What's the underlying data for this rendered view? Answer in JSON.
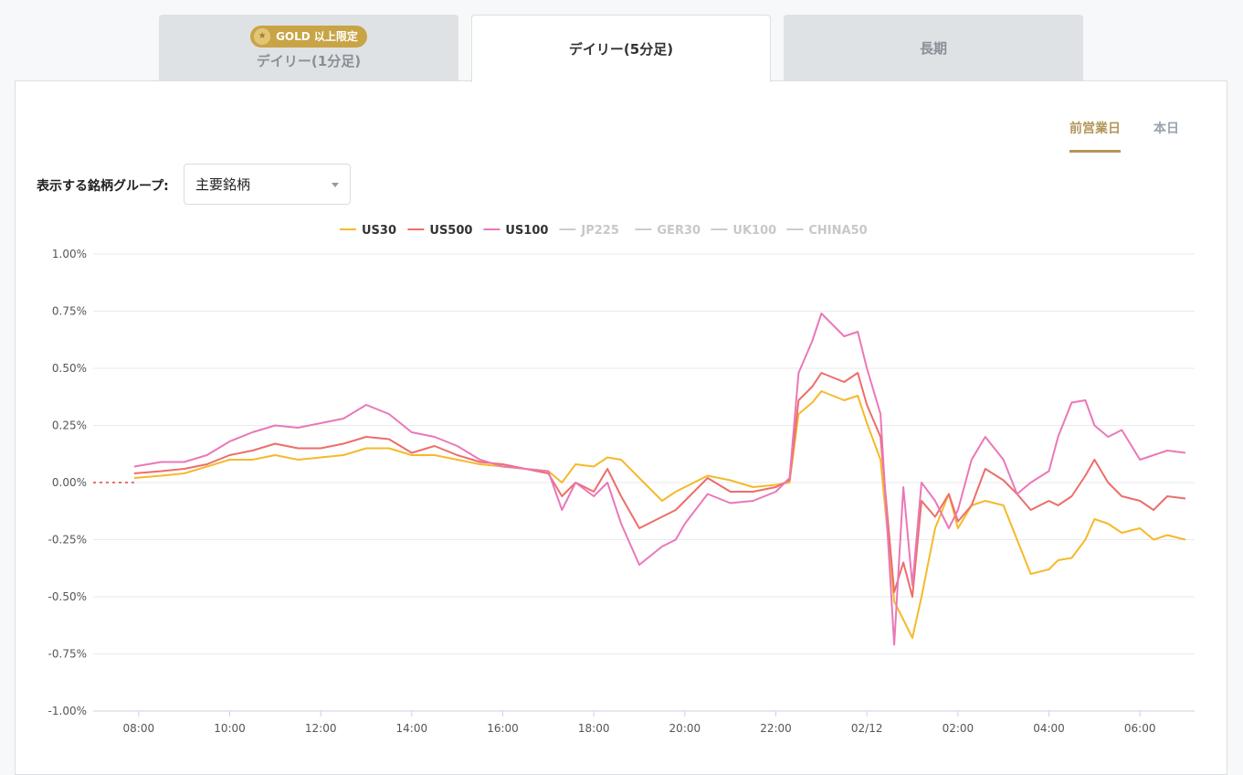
{
  "tabs": [
    {
      "label": "デイリー(1分足)",
      "badge": "GOLD 以上限定",
      "state": "inactive"
    },
    {
      "label": "デイリー(5分足)",
      "state": "active"
    },
    {
      "label": "長期",
      "state": "inactive"
    }
  ],
  "period_tabs": [
    {
      "label": "前営業日",
      "active": true
    },
    {
      "label": "本日",
      "active": false
    }
  ],
  "group_selector": {
    "label": "表示する銘柄グループ:",
    "value": "主要銘柄"
  },
  "colors": {
    "accent": "#b3975a",
    "gold_badge": "#c9a446",
    "US30": "#f6b92b",
    "US500": "#ec6e6a",
    "US100": "#ea78b8",
    "disabled": "#cccccc"
  },
  "chart_data": {
    "type": "line",
    "y_unit": "%",
    "ylim": [
      -1.0,
      1.0
    ],
    "y_ticks": [
      "1.00%",
      "0.75%",
      "0.50%",
      "0.25%",
      "0.00%",
      "-0.25%",
      "-0.50%",
      "-0.75%",
      "-1.00%"
    ],
    "x_ticks": [
      "08:00",
      "10:00",
      "12:00",
      "14:00",
      "16:00",
      "18:00",
      "20:00",
      "22:00",
      "02/12",
      "02:00",
      "04:00",
      "06:00"
    ],
    "x_range_hours": [
      7.0,
      31.2
    ],
    "grid": true,
    "legend_position": "top-center",
    "legend": [
      {
        "name": "US30",
        "active": true
      },
      {
        "name": "US500",
        "active": true
      },
      {
        "name": "US100",
        "active": true
      },
      {
        "name": "JP225",
        "active": false
      },
      {
        "name": "GER30",
        "active": false
      },
      {
        "name": "UK100",
        "active": false
      },
      {
        "name": "CHINA50",
        "active": false
      }
    ],
    "pre_open_flat": {
      "from_hour": 7.0,
      "to_hour": 7.9,
      "value": 0.0
    },
    "x_hours": [
      7.9,
      8.5,
      9.0,
      9.5,
      10.0,
      10.5,
      11.0,
      11.5,
      12.0,
      12.5,
      13.0,
      13.5,
      14.0,
      14.5,
      15.0,
      15.5,
      16.0,
      16.5,
      17.0,
      17.3,
      17.6,
      18.0,
      18.3,
      18.6,
      19.0,
      19.5,
      19.8,
      20.0,
      20.5,
      21.0,
      21.5,
      22.0,
      22.3,
      22.5,
      22.8,
      23.0,
      23.5,
      23.8,
      24.0,
      24.3,
      24.6,
      24.8,
      25.0,
      25.2,
      25.5,
      25.8,
      26.0,
      26.3,
      26.6,
      27.0,
      27.3,
      27.6,
      28.0,
      28.2,
      28.5,
      28.8,
      29.0,
      29.3,
      29.6,
      30.0,
      30.3,
      30.6,
      31.0
    ],
    "series": [
      {
        "name": "US30",
        "values": [
          0.02,
          0.03,
          0.04,
          0.07,
          0.1,
          0.1,
          0.12,
          0.1,
          0.11,
          0.12,
          0.15,
          0.15,
          0.12,
          0.12,
          0.1,
          0.08,
          0.07,
          0.06,
          0.05,
          0.0,
          0.08,
          0.07,
          0.11,
          0.1,
          0.02,
          -0.08,
          -0.04,
          -0.02,
          0.03,
          0.01,
          -0.02,
          -0.01,
          0.0,
          0.3,
          0.35,
          0.4,
          0.36,
          0.38,
          0.26,
          0.1,
          -0.52,
          -0.6,
          -0.68,
          -0.5,
          -0.2,
          -0.05,
          -0.2,
          -0.1,
          -0.08,
          -0.1,
          -0.25,
          -0.4,
          -0.38,
          -0.34,
          -0.33,
          -0.25,
          -0.16,
          -0.18,
          -0.22,
          -0.2,
          -0.25,
          -0.23,
          -0.25
        ]
      },
      {
        "name": "US500",
        "values": [
          0.04,
          0.05,
          0.06,
          0.08,
          0.12,
          0.14,
          0.17,
          0.15,
          0.15,
          0.17,
          0.2,
          0.19,
          0.13,
          0.16,
          0.12,
          0.09,
          0.08,
          0.06,
          0.04,
          -0.06,
          0.0,
          -0.04,
          0.06,
          -0.06,
          -0.2,
          -0.15,
          -0.12,
          -0.08,
          0.02,
          -0.04,
          -0.04,
          -0.02,
          0.01,
          0.36,
          0.42,
          0.48,
          0.44,
          0.48,
          0.34,
          0.2,
          -0.48,
          -0.35,
          -0.5,
          -0.08,
          -0.15,
          -0.05,
          -0.17,
          -0.1,
          0.06,
          0.01,
          -0.05,
          -0.12,
          -0.08,
          -0.1,
          -0.06,
          0.03,
          0.1,
          0.0,
          -0.06,
          -0.08,
          -0.12,
          -0.06,
          -0.07
        ]
      },
      {
        "name": "US100",
        "values": [
          0.07,
          0.09,
          0.09,
          0.12,
          0.18,
          0.22,
          0.25,
          0.24,
          0.26,
          0.28,
          0.34,
          0.3,
          0.22,
          0.2,
          0.16,
          0.1,
          0.07,
          0.06,
          0.05,
          -0.12,
          0.0,
          -0.06,
          0.0,
          -0.18,
          -0.36,
          -0.28,
          -0.25,
          -0.18,
          -0.05,
          -0.09,
          -0.08,
          -0.04,
          0.02,
          0.48,
          0.62,
          0.74,
          0.64,
          0.66,
          0.5,
          0.3,
          -0.71,
          -0.02,
          -0.45,
          0.0,
          -0.08,
          -0.2,
          -0.12,
          0.1,
          0.2,
          0.1,
          -0.05,
          0.0,
          0.05,
          0.2,
          0.35,
          0.36,
          0.25,
          0.2,
          0.23,
          0.1,
          0.12,
          0.14,
          0.13
        ]
      }
    ]
  }
}
